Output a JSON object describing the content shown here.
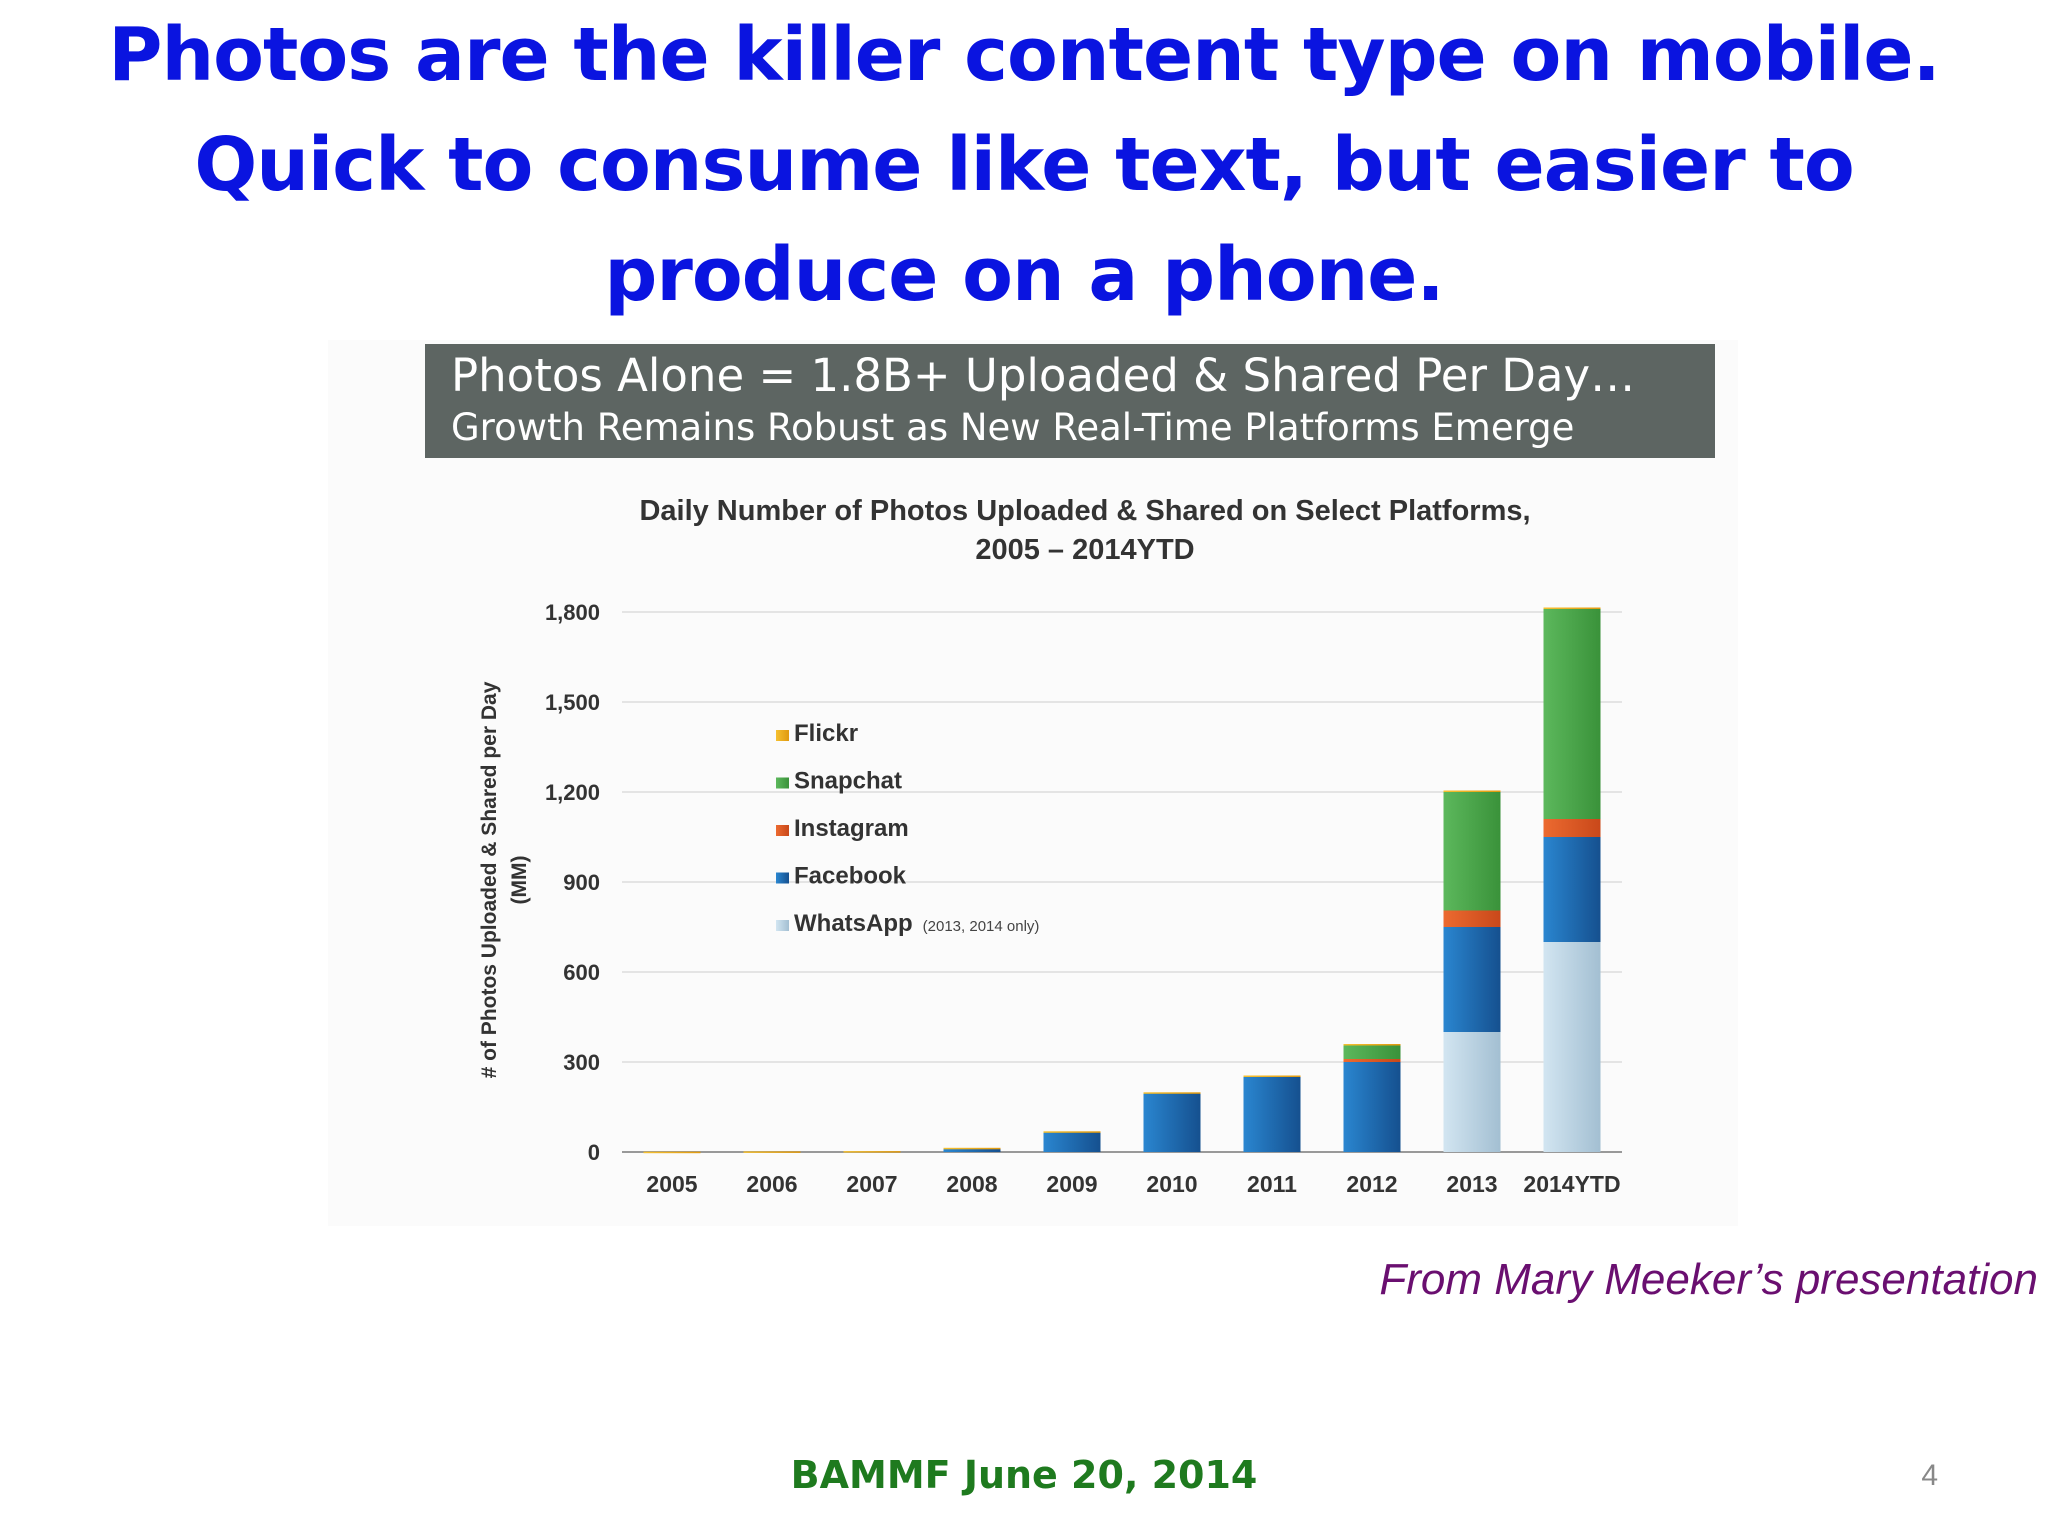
{
  "slide": {
    "title": "Photos are the killer content type on mobile. Quick to consume like text, but easier to produce on a phone.",
    "source": "From Mary Meeker’s presentation",
    "footer": "BAMMF June 20, 2014",
    "page_number": "4"
  },
  "banner": {
    "title": "Photos Alone = 1.8B+ Uploaded & Shared Per Day…",
    "subtitle": "Growth Remains Robust as New Real-Time Platforms Emerge"
  },
  "chart_data": {
    "type": "bar",
    "stacked": true,
    "title_line1": "Daily Number of Photos Uploaded & Shared on Select Platforms,",
    "title_line2": "2005 – 2014YTD",
    "ylabel_line1": "# of Photos Uploaded & Shared per Day",
    "ylabel_line2": "(MM)",
    "ylim": [
      0,
      1800
    ],
    "yticks": [
      0,
      300,
      600,
      900,
      1200,
      1500,
      1800
    ],
    "ytick_labels": [
      "0",
      "300",
      "600",
      "900",
      "1,200",
      "1,500",
      "1,800"
    ],
    "grid": true,
    "legend_position": "upper-left",
    "categories": [
      "2005",
      "2006",
      "2007",
      "2008",
      "2009",
      "2010",
      "2011",
      "2012",
      "2013",
      "2014YTD"
    ],
    "series": [
      {
        "name": "WhatsApp",
        "note": "(2013, 2014 only)",
        "color": "#b9d3e4",
        "values": [
          0,
          0,
          0,
          0,
          0,
          0,
          0,
          0,
          400,
          700
        ]
      },
      {
        "name": "Facebook",
        "note": "",
        "color": "#1f6fb6",
        "values": [
          0,
          0,
          0,
          10,
          65,
          195,
          250,
          300,
          350,
          350
        ]
      },
      {
        "name": "Instagram",
        "note": "",
        "color": "#e05a26",
        "values": [
          0,
          0,
          0,
          0,
          0,
          0,
          0,
          10,
          55,
          60
        ]
      },
      {
        "name": "Snapchat",
        "note": "",
        "color": "#4aa64a",
        "values": [
          0,
          0,
          0,
          0,
          0,
          0,
          0,
          45,
          395,
          700
        ]
      },
      {
        "name": "Flickr",
        "note": "",
        "color": "#f0b01e",
        "values": [
          1,
          2,
          3,
          4,
          4,
          4,
          5,
          5,
          5,
          5
        ]
      }
    ],
    "legend_order": [
      "Flickr",
      "Snapchat",
      "Instagram",
      "Facebook",
      "WhatsApp"
    ]
  }
}
